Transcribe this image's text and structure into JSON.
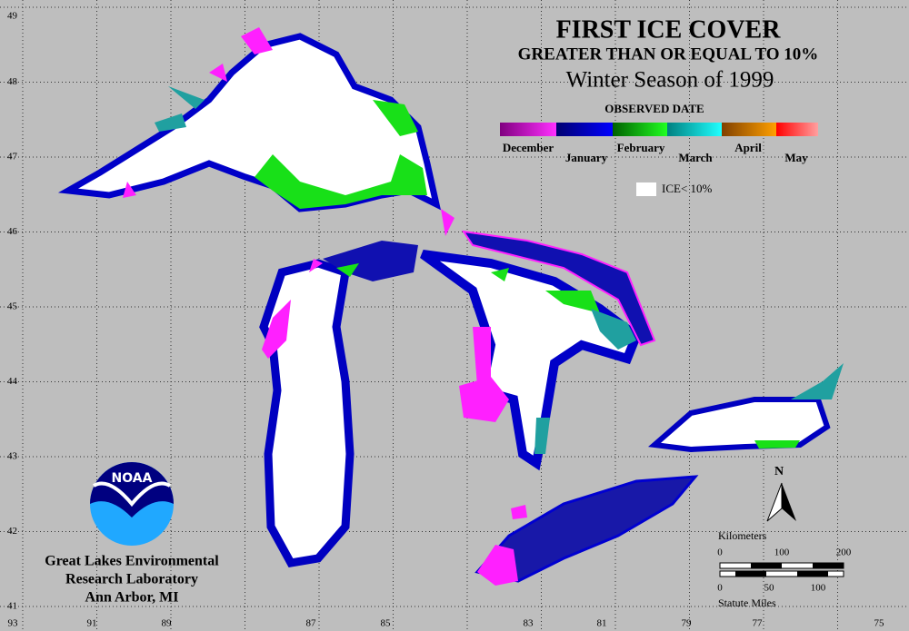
{
  "title": "FIRST ICE COVER",
  "subtitle": "GREATER THAN OR EQUAL TO 10%",
  "season": "Winter Season of 1999",
  "legend": {
    "title": "OBSERVED DATE",
    "months": [
      "December",
      "January",
      "February",
      "March",
      "April",
      "May"
    ],
    "ice_label": "ICE< 10%"
  },
  "north": "N",
  "scale": {
    "km_title": "Kilometers",
    "km_ticks": [
      0,
      100,
      200
    ],
    "mi_ticks": [
      0,
      50,
      100
    ],
    "mi_title": "Statute Miles"
  },
  "credit": [
    "Great Lakes Environmental",
    "Research Laboratory",
    "Ann Arbor, MI"
  ],
  "latitudes": [
    49,
    48,
    47,
    46,
    45,
    44,
    43,
    42,
    41
  ],
  "longitudes": [
    93,
    91,
    89,
    87,
    85,
    83,
    81,
    79,
    77,
    75
  ]
}
